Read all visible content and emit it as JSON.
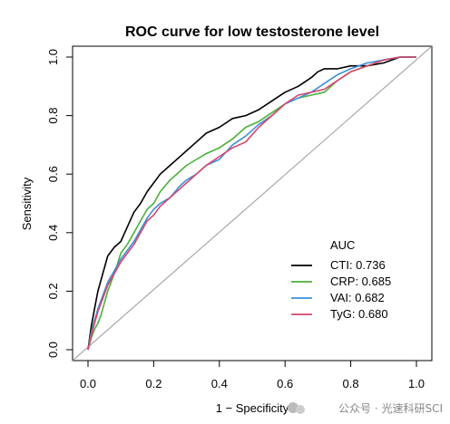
{
  "chart_data": {
    "type": "line",
    "title": "ROC curve for low testosterone level",
    "xlabel": "1 − Specificity",
    "ylabel": "Sensitivity",
    "xlim": [
      0,
      1
    ],
    "ylim": [
      0,
      1
    ],
    "x_ticks": [
      "0.0",
      "0.2",
      "0.4",
      "0.6",
      "0.8",
      "1.0"
    ],
    "y_ticks": [
      "0.0",
      "0.2",
      "0.4",
      "0.6",
      "0.8",
      "1.0"
    ],
    "grid": false,
    "legend_placement": "bottom-right",
    "legend_title": "AUC",
    "reference_line": {
      "x": [
        0,
        1
      ],
      "y": [
        0,
        1
      ],
      "color": "#999999"
    },
    "series": [
      {
        "name": "CTI",
        "legend_text": "CTI: 0.736",
        "auc": 0.736,
        "color": "#000000",
        "x": [
          0,
          0.01,
          0.02,
          0.03,
          0.04,
          0.05,
          0.06,
          0.08,
          0.1,
          0.12,
          0.14,
          0.16,
          0.18,
          0.2,
          0.22,
          0.25,
          0.28,
          0.3,
          0.33,
          0.36,
          0.4,
          0.44,
          0.48,
          0.52,
          0.56,
          0.6,
          0.64,
          0.68,
          0.7,
          0.72,
          0.76,
          0.8,
          0.85,
          0.9,
          0.95,
          1.0
        ],
        "y": [
          0,
          0.08,
          0.14,
          0.2,
          0.24,
          0.28,
          0.32,
          0.35,
          0.37,
          0.42,
          0.47,
          0.5,
          0.54,
          0.57,
          0.6,
          0.63,
          0.66,
          0.68,
          0.71,
          0.74,
          0.76,
          0.79,
          0.8,
          0.82,
          0.85,
          0.88,
          0.9,
          0.93,
          0.95,
          0.96,
          0.96,
          0.97,
          0.97,
          0.98,
          1.0,
          1.0
        ]
      },
      {
        "name": "CRP",
        "legend_text": "CRP: 0.685",
        "auc": 0.685,
        "color": "#4caf3a",
        "x": [
          0,
          0.01,
          0.02,
          0.03,
          0.04,
          0.05,
          0.06,
          0.08,
          0.1,
          0.12,
          0.14,
          0.16,
          0.18,
          0.2,
          0.22,
          0.25,
          0.28,
          0.3,
          0.33,
          0.36,
          0.4,
          0.44,
          0.48,
          0.52,
          0.56,
          0.6,
          0.64,
          0.68,
          0.72,
          0.76,
          0.8,
          0.85,
          0.9,
          0.95,
          1.0
        ],
        "y": [
          0,
          0.04,
          0.07,
          0.09,
          0.12,
          0.16,
          0.2,
          0.26,
          0.33,
          0.36,
          0.4,
          0.44,
          0.48,
          0.5,
          0.54,
          0.58,
          0.61,
          0.63,
          0.65,
          0.67,
          0.69,
          0.72,
          0.76,
          0.78,
          0.81,
          0.84,
          0.86,
          0.87,
          0.88,
          0.92,
          0.95,
          0.97,
          0.99,
          1.0,
          1.0
        ]
      },
      {
        "name": "VAI",
        "legend_text": "VAI: 0.682",
        "auc": 0.682,
        "color": "#3b8fd9",
        "x": [
          0,
          0.01,
          0.02,
          0.03,
          0.04,
          0.05,
          0.06,
          0.08,
          0.1,
          0.12,
          0.14,
          0.16,
          0.18,
          0.2,
          0.22,
          0.25,
          0.28,
          0.3,
          0.33,
          0.36,
          0.4,
          0.44,
          0.48,
          0.52,
          0.56,
          0.6,
          0.64,
          0.68,
          0.72,
          0.76,
          0.8,
          0.85,
          0.9,
          0.95,
          1.0
        ],
        "y": [
          0,
          0.06,
          0.1,
          0.14,
          0.17,
          0.2,
          0.23,
          0.27,
          0.31,
          0.34,
          0.37,
          0.41,
          0.45,
          0.48,
          0.5,
          0.52,
          0.56,
          0.58,
          0.6,
          0.63,
          0.65,
          0.7,
          0.73,
          0.77,
          0.8,
          0.84,
          0.86,
          0.88,
          0.91,
          0.94,
          0.96,
          0.98,
          0.99,
          1.0,
          1.0
        ]
      },
      {
        "name": "TyG",
        "legend_text": "TyG: 0.680",
        "auc": 0.68,
        "color": "#d9456b",
        "x": [
          0,
          0.01,
          0.02,
          0.03,
          0.04,
          0.05,
          0.06,
          0.08,
          0.1,
          0.12,
          0.14,
          0.16,
          0.18,
          0.2,
          0.22,
          0.25,
          0.28,
          0.3,
          0.33,
          0.36,
          0.4,
          0.44,
          0.48,
          0.52,
          0.56,
          0.6,
          0.64,
          0.68,
          0.72,
          0.76,
          0.8,
          0.85,
          0.9,
          0.95,
          1.0
        ],
        "y": [
          0,
          0.05,
          0.09,
          0.13,
          0.16,
          0.19,
          0.22,
          0.26,
          0.3,
          0.33,
          0.36,
          0.4,
          0.44,
          0.46,
          0.49,
          0.52,
          0.55,
          0.57,
          0.6,
          0.63,
          0.66,
          0.69,
          0.71,
          0.76,
          0.8,
          0.84,
          0.87,
          0.88,
          0.89,
          0.92,
          0.95,
          0.97,
          0.99,
          1.0,
          1.0
        ]
      }
    ]
  },
  "watermark": {
    "text": "公众号 · 光速科研SCI"
  }
}
